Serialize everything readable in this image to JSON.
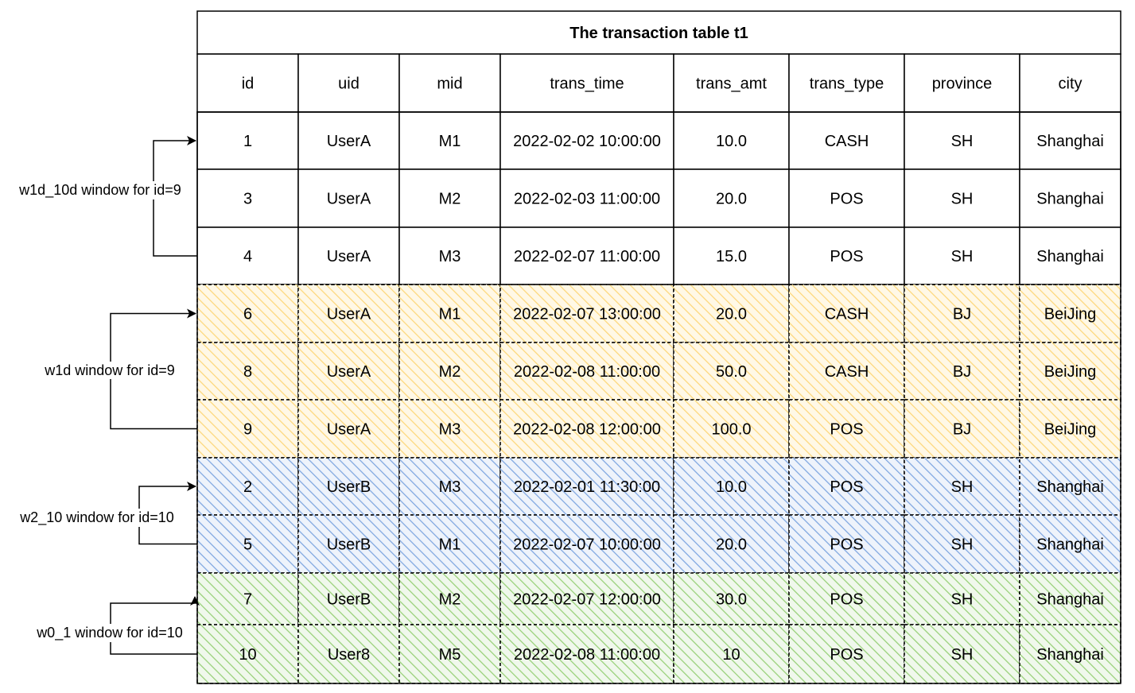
{
  "table": {
    "title": "The transaction table t1",
    "columns": [
      "id",
      "uid",
      "mid",
      "trans_time",
      "trans_amt",
      "trans_type",
      "province",
      "city"
    ],
    "rows": [
      {
        "cells": [
          "1",
          "UserA",
          "M1",
          "2022-02-02 10:00:00",
          "10.0",
          "CASH",
          "SH",
          "Shanghai"
        ],
        "group": "none"
      },
      {
        "cells": [
          "3",
          "UserA",
          "M2",
          "2022-02-03 11:00:00",
          "20.0",
          "POS",
          "SH",
          "Shanghai"
        ],
        "group": "none"
      },
      {
        "cells": [
          "4",
          "UserA",
          "M3",
          "2022-02-07 11:00:00",
          "15.0",
          "POS",
          "SH",
          "Shanghai"
        ],
        "group": "none"
      },
      {
        "cells": [
          "6",
          "UserA",
          "M1",
          "2022-02-07 13:00:00",
          "20.0",
          "CASH",
          "BJ",
          "BeiJing"
        ],
        "group": "orange"
      },
      {
        "cells": [
          "8",
          "UserA",
          "M2",
          "2022-02-08 11:00:00",
          "50.0",
          "CASH",
          "BJ",
          "BeiJing"
        ],
        "group": "orange"
      },
      {
        "cells": [
          "9",
          "UserA",
          "M3",
          "2022-02-08 12:00:00",
          "100.0",
          "POS",
          "BJ",
          "BeiJing"
        ],
        "group": "orange"
      },
      {
        "cells": [
          "2",
          "UserB",
          "M3",
          "2022-02-01 11:30:00",
          "10.0",
          "POS",
          "SH",
          "Shanghai"
        ],
        "group": "blue"
      },
      {
        "cells": [
          "5",
          "UserB",
          "M1",
          "2022-02-07 10:00:00",
          "20.0",
          "POS",
          "SH",
          "Shanghai"
        ],
        "group": "blue"
      },
      {
        "cells": [
          "7",
          "UserB",
          "M2",
          "2022-02-07 12:00:00",
          "30.0",
          "POS",
          "SH",
          "Shanghai"
        ],
        "group": "green"
      },
      {
        "cells": [
          "10",
          "User8",
          "M5",
          "2022-02-08 11:00:00",
          "10",
          "POS",
          "SH",
          "Shanghai"
        ],
        "group": "green"
      }
    ]
  },
  "windows": [
    {
      "label": "w1d_10d window for id=9",
      "from_row": 2,
      "to_row": 0
    },
    {
      "label": "w1d window for id=9",
      "from_row": 5,
      "to_row": 3
    },
    {
      "label": "w2_10 window for id=10",
      "from_row": 7,
      "to_row": 6
    },
    {
      "label": "w0_1 window for id=10",
      "from_row": 9,
      "to_row": 8
    }
  ],
  "colors": {
    "orange": "#fdd77a",
    "blue": "#7ea6e0",
    "green": "#97d077",
    "border": "#000000"
  }
}
